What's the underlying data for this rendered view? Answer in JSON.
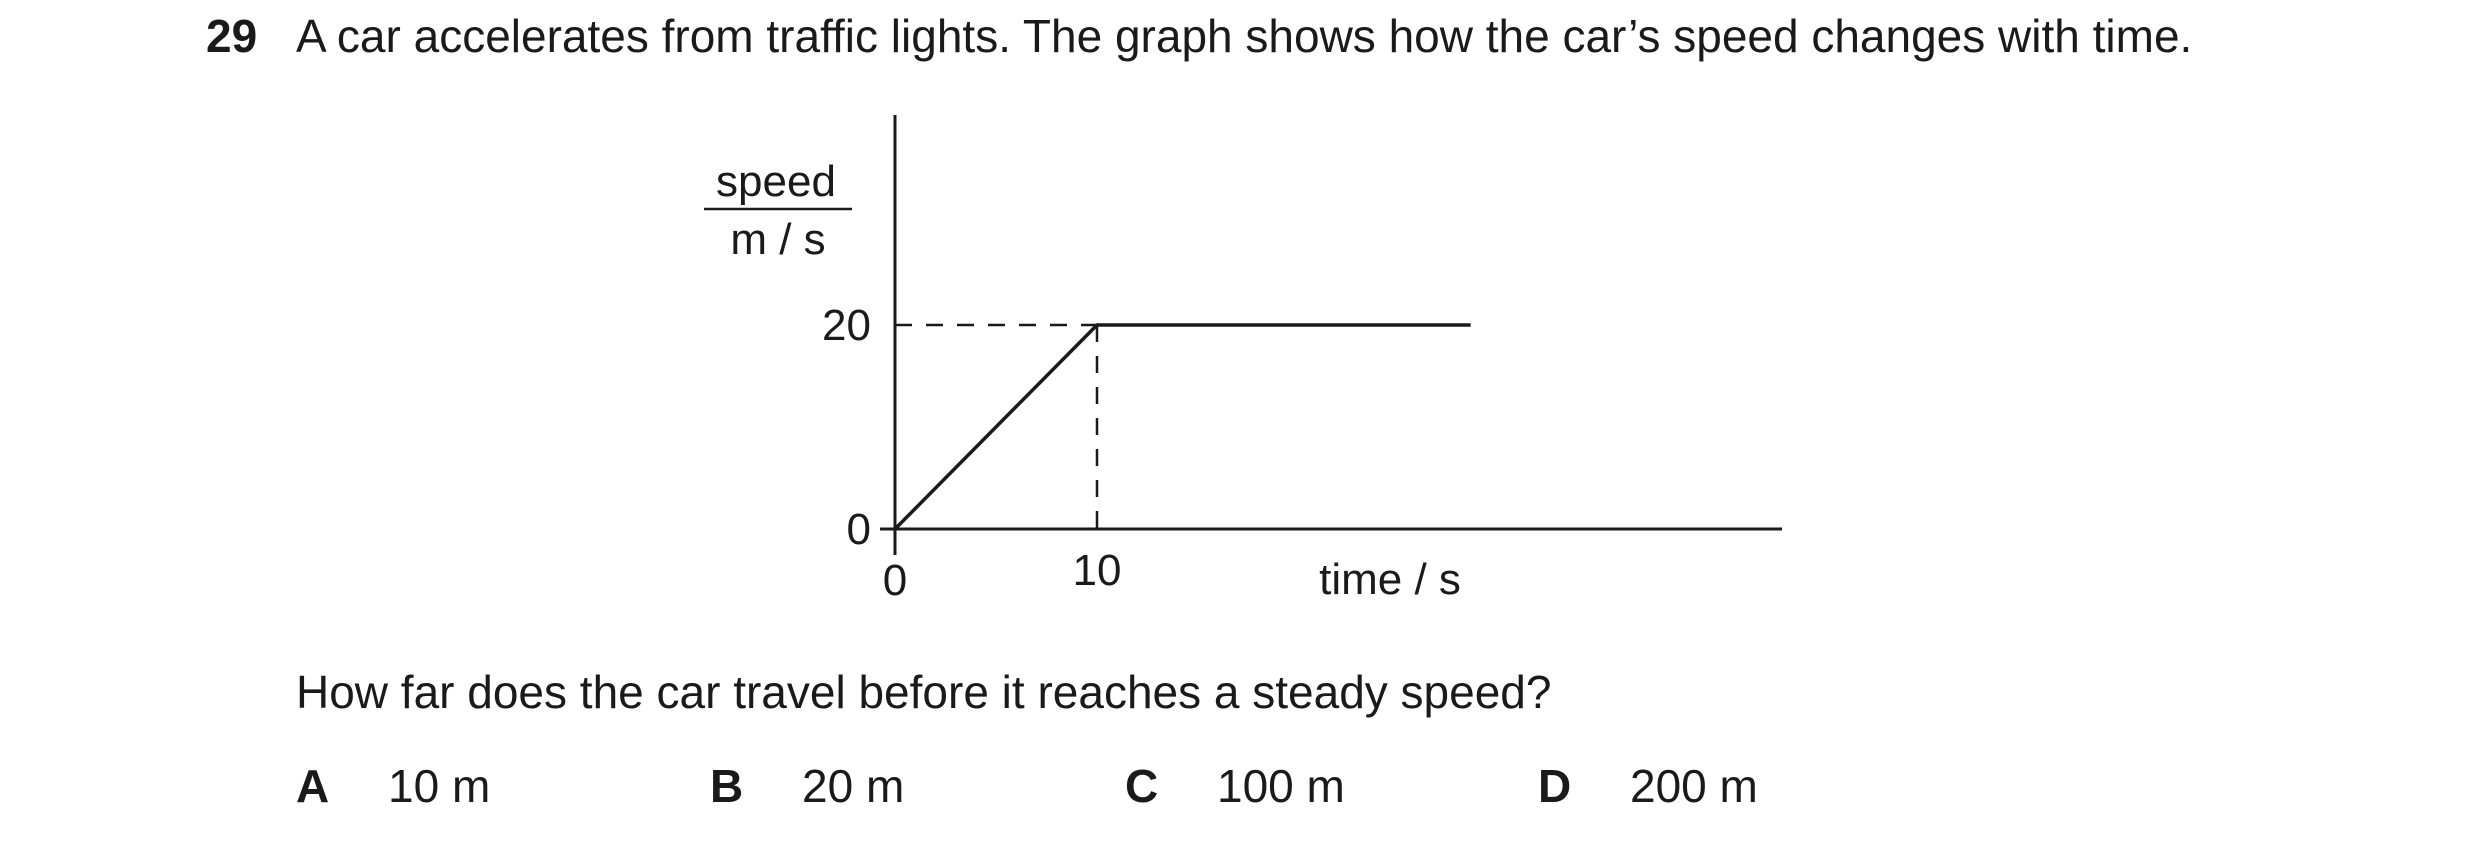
{
  "question": {
    "number": "29",
    "stem": "A car accelerates from traffic lights. The graph shows how the car’s speed changes with time.",
    "prompt": "How far does the car travel before it reaches a steady speed?",
    "options": [
      {
        "letter": "A",
        "value": "10 m"
      },
      {
        "letter": "B",
        "value": "20 m"
      },
      {
        "letter": "C",
        "value": "100 m"
      },
      {
        "letter": "D",
        "value": "200 m"
      }
    ]
  },
  "chart_data": {
    "type": "line",
    "title": "",
    "ylabel_top": "speed",
    "ylabel_bottom": "m / s",
    "xlabel": "time / s",
    "x_ticks": [
      "0",
      "10"
    ],
    "y_ticks": [
      "0",
      "20"
    ],
    "xlim": [
      0,
      44
    ],
    "ylim": [
      0,
      31
    ],
    "grid": false,
    "series": [
      {
        "x": [
          0,
          10,
          28.5
        ],
        "y": [
          0,
          20,
          20
        ]
      }
    ],
    "guides": [
      {
        "from": [
          0,
          20
        ],
        "to": [
          10,
          20
        ],
        "style": "dashed"
      },
      {
        "from": [
          10,
          20
        ],
        "to": [
          10,
          0
        ],
        "style": "dashed"
      }
    ]
  }
}
